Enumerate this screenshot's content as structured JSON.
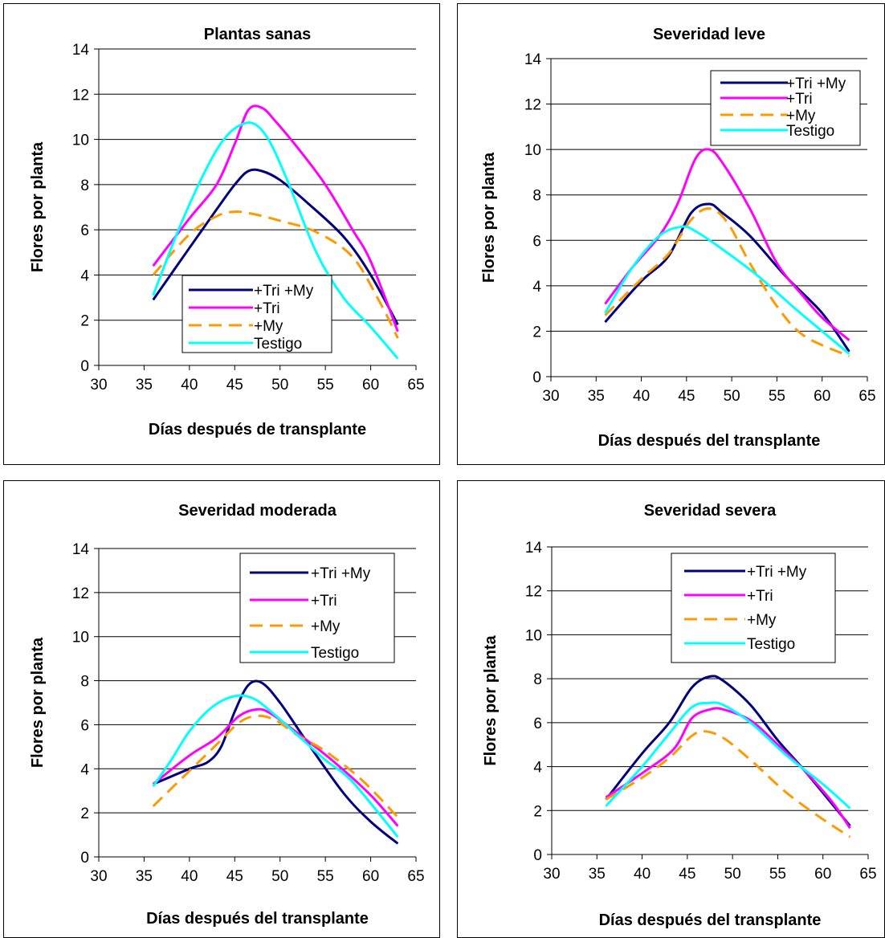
{
  "chart_data": [
    {
      "type": "line",
      "title": "Plantas sanas",
      "xlabel": "Días después de transplante",
      "ylabel": "Flores por planta",
      "xlim": [
        30,
        65
      ],
      "ylim": [
        0,
        14
      ],
      "xticks": [
        30,
        35,
        40,
        45,
        50,
        55,
        60,
        65
      ],
      "yticks": [
        0,
        2,
        4,
        6,
        8,
        10,
        12,
        14
      ],
      "grid": "horizontal",
      "legend": "bottom-center",
      "series": [
        {
          "name": "+Tri +My",
          "color": "#000080",
          "dash": "solid",
          "x": [
            36,
            40,
            43,
            45,
            46.5,
            48,
            50,
            53,
            57,
            60,
            63
          ],
          "y": [
            2.9,
            5.2,
            6.9,
            8.0,
            8.6,
            8.6,
            8.2,
            7.2,
            5.7,
            4.0,
            1.8
          ]
        },
        {
          "name": "+Tri",
          "color": "#ff00ff",
          "dash": "solid",
          "x": [
            36,
            40,
            43,
            45,
            46.5,
            48,
            49.5,
            52,
            55,
            58,
            60,
            63
          ],
          "y": [
            4.4,
            6.5,
            8.0,
            9.8,
            11.3,
            11.4,
            10.8,
            9.6,
            8.0,
            6.0,
            4.6,
            1.5
          ]
        },
        {
          "name": "+My",
          "color": "#ff9900",
          "dash": "dashed",
          "x": [
            36,
            40,
            43,
            45,
            47,
            50,
            54,
            58,
            61,
            63
          ],
          "y": [
            4.0,
            5.8,
            6.6,
            6.8,
            6.7,
            6.4,
            5.9,
            4.8,
            2.8,
            1.2
          ]
        },
        {
          "name": "Testigo",
          "color": "#00ffff",
          "dash": "solid",
          "x": [
            36,
            39,
            42,
            44,
            46,
            47.5,
            49,
            51,
            54,
            57,
            60,
            63
          ],
          "y": [
            3.1,
            6.2,
            8.8,
            10.1,
            10.7,
            10.6,
            9.8,
            8.0,
            5.0,
            3.0,
            1.7,
            0.3
          ]
        }
      ]
    },
    {
      "type": "line",
      "title": "Severidad leve",
      "xlabel": "Días después del transplante",
      "ylabel": "Flores por planta",
      "xlim": [
        30,
        65
      ],
      "ylim": [
        0,
        14
      ],
      "xticks": [
        30,
        35,
        40,
        45,
        50,
        55,
        60,
        65
      ],
      "yticks": [
        0,
        2,
        4,
        6,
        8,
        10,
        12,
        14
      ],
      "grid": "horizontal",
      "legend": "top-right",
      "series": [
        {
          "name": "+Tri +My",
          "color": "#000080",
          "dash": "solid",
          "x": [
            36,
            40,
            43,
            45.5,
            47.5,
            49,
            52,
            56,
            60,
            63
          ],
          "y": [
            2.4,
            4.2,
            5.3,
            7.2,
            7.6,
            7.2,
            6.2,
            4.4,
            2.8,
            1.1
          ]
        },
        {
          "name": "+Tri",
          "color": "#ff00ff",
          "dash": "solid",
          "x": [
            36,
            39,
            42,
            44,
            46,
            47.5,
            49,
            52,
            55,
            58,
            60,
            63
          ],
          "y": [
            3.2,
            4.8,
            6.2,
            7.6,
            9.6,
            10.0,
            9.4,
            7.4,
            5.0,
            3.5,
            2.6,
            1.6
          ]
        },
        {
          "name": "+My",
          "color": "#ff9900",
          "dash": "dashed",
          "x": [
            36,
            40,
            43,
            45.5,
            47.5,
            49.5,
            52,
            55,
            58,
            63
          ],
          "y": [
            2.7,
            4.3,
            5.4,
            6.9,
            7.4,
            6.8,
            5.0,
            3.1,
            1.8,
            0.9
          ]
        },
        {
          "name": "Testigo",
          "color": "#00ffff",
          "dash": "solid",
          "x": [
            36,
            39,
            42,
            44.5,
            46,
            49,
            53,
            57,
            60,
            63
          ],
          "y": [
            2.8,
            4.8,
            6.2,
            6.6,
            6.4,
            5.6,
            4.4,
            3.0,
            2.0,
            1.0
          ]
        }
      ]
    },
    {
      "type": "line",
      "title": "Severidad moderada",
      "xlabel": "Días después del transplante",
      "ylabel": "Flores por planta",
      "xlim": [
        30,
        65
      ],
      "ylim": [
        0,
        14
      ],
      "xticks": [
        30,
        35,
        40,
        45,
        50,
        55,
        60,
        65
      ],
      "yticks": [
        0,
        2,
        4,
        6,
        8,
        10,
        12,
        14
      ],
      "grid": "horizontal",
      "legend": "top-right",
      "series": [
        {
          "name": "+Tri +My",
          "color": "#000080",
          "dash": "solid",
          "x": [
            36,
            40,
            42,
            43.5,
            45,
            46.5,
            48,
            50,
            53,
            57,
            60,
            63
          ],
          "y": [
            3.3,
            4.0,
            4.3,
            5.0,
            6.6,
            7.8,
            7.9,
            7.0,
            5.2,
            2.9,
            1.6,
            0.6
          ]
        },
        {
          "name": "+Tri",
          "color": "#ff00ff",
          "dash": "solid",
          "x": [
            36,
            40,
            43,
            45.5,
            47.5,
            49,
            52,
            56,
            60,
            63
          ],
          "y": [
            3.3,
            4.6,
            5.4,
            6.4,
            6.7,
            6.5,
            5.6,
            4.3,
            2.8,
            1.4
          ]
        },
        {
          "name": "+My",
          "color": "#ff9900",
          "dash": "dashed",
          "x": [
            36,
            40,
            43,
            45.5,
            47.5,
            49.5,
            52,
            55,
            59,
            63
          ],
          "y": [
            2.3,
            3.9,
            5.1,
            6.1,
            6.4,
            6.2,
            5.5,
            4.8,
            3.5,
            1.8
          ]
        },
        {
          "name": "Testigo",
          "color": "#00ffff",
          "dash": "solid",
          "x": [
            36,
            38,
            40,
            42.5,
            45,
            47,
            49,
            52,
            55,
            58,
            63
          ],
          "y": [
            3.2,
            4.4,
            5.7,
            6.8,
            7.3,
            7.2,
            6.6,
            5.5,
            4.4,
            3.4,
            0.9
          ]
        }
      ]
    },
    {
      "type": "line",
      "title": "Severidad severa",
      "xlabel": "Días después del transplante",
      "ylabel": "Flores por planta",
      "xlim": [
        30,
        65
      ],
      "ylim": [
        0,
        14
      ],
      "xticks": [
        30,
        35,
        40,
        45,
        50,
        55,
        60,
        65
      ],
      "yticks": [
        0,
        2,
        4,
        6,
        8,
        10,
        12,
        14
      ],
      "grid": "horizontal",
      "legend": "top-right",
      "series": [
        {
          "name": "+Tri +My",
          "color": "#000080",
          "dash": "solid",
          "x": [
            36,
            40,
            43,
            45.5,
            47.5,
            49,
            52,
            55,
            58,
            63
          ],
          "y": [
            2.5,
            4.6,
            6.0,
            7.6,
            8.1,
            7.9,
            6.8,
            5.2,
            3.8,
            1.3
          ]
        },
        {
          "name": "+Tri",
          "color": "#ff00ff",
          "dash": "solid",
          "x": [
            36,
            40,
            43.5,
            45.5,
            47.5,
            49,
            52,
            55,
            58,
            61,
            63
          ],
          "y": [
            2.6,
            3.7,
            4.8,
            6.2,
            6.6,
            6.6,
            6.1,
            5.0,
            3.8,
            2.4,
            1.2
          ]
        },
        {
          "name": "+My",
          "color": "#ff9900",
          "dash": "dashed",
          "x": [
            36,
            40,
            43,
            45.5,
            47,
            49,
            52,
            56,
            60,
            63
          ],
          "y": [
            2.5,
            3.5,
            4.4,
            5.4,
            5.6,
            5.3,
            4.3,
            2.8,
            1.6,
            0.8
          ]
        },
        {
          "name": "Testigo",
          "color": "#00ffff",
          "dash": "solid",
          "x": [
            36,
            40,
            43,
            45.5,
            47.5,
            49,
            52,
            56,
            60,
            63
          ],
          "y": [
            2.2,
            4.0,
            5.5,
            6.7,
            6.9,
            6.8,
            6.0,
            4.5,
            3.2,
            2.1
          ]
        }
      ]
    }
  ]
}
